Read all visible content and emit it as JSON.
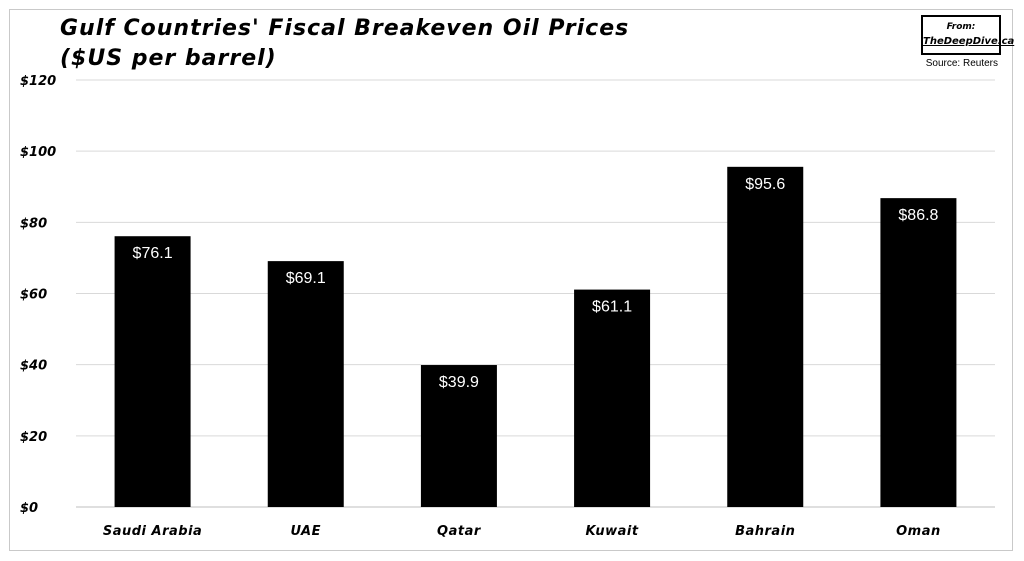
{
  "header": {
    "title_line1": "Gulf Countries' Fiscal Breakeven Oil Prices",
    "title_line2": "($US per barrel)",
    "badge_from": "From:",
    "badge_site": "TheDeepDive.ca",
    "source": "Source: Reuters"
  },
  "chart_data": {
    "type": "bar",
    "title": "Gulf Countries' Fiscal Breakeven Oil Prices ($US per barrel)",
    "categories": [
      "Saudi Arabia",
      "UAE",
      "Qatar",
      "Kuwait",
      "Bahrain",
      "Oman"
    ],
    "values": [
      76.1,
      69.1,
      39.9,
      61.1,
      95.6,
      86.8
    ],
    "data_labels": [
      "$76.1",
      "$69.1",
      "$39.9",
      "$61.1",
      "$95.6",
      "$86.8"
    ],
    "ylim": [
      0,
      120
    ],
    "yticks": [
      0,
      20,
      40,
      60,
      80,
      100,
      120
    ],
    "ytick_labels": [
      "$0",
      "$20",
      "$40",
      "$60",
      "$80",
      "$100",
      "$120"
    ],
    "grid": true,
    "bar_color": "#000000",
    "label_color": "#ffffff"
  }
}
